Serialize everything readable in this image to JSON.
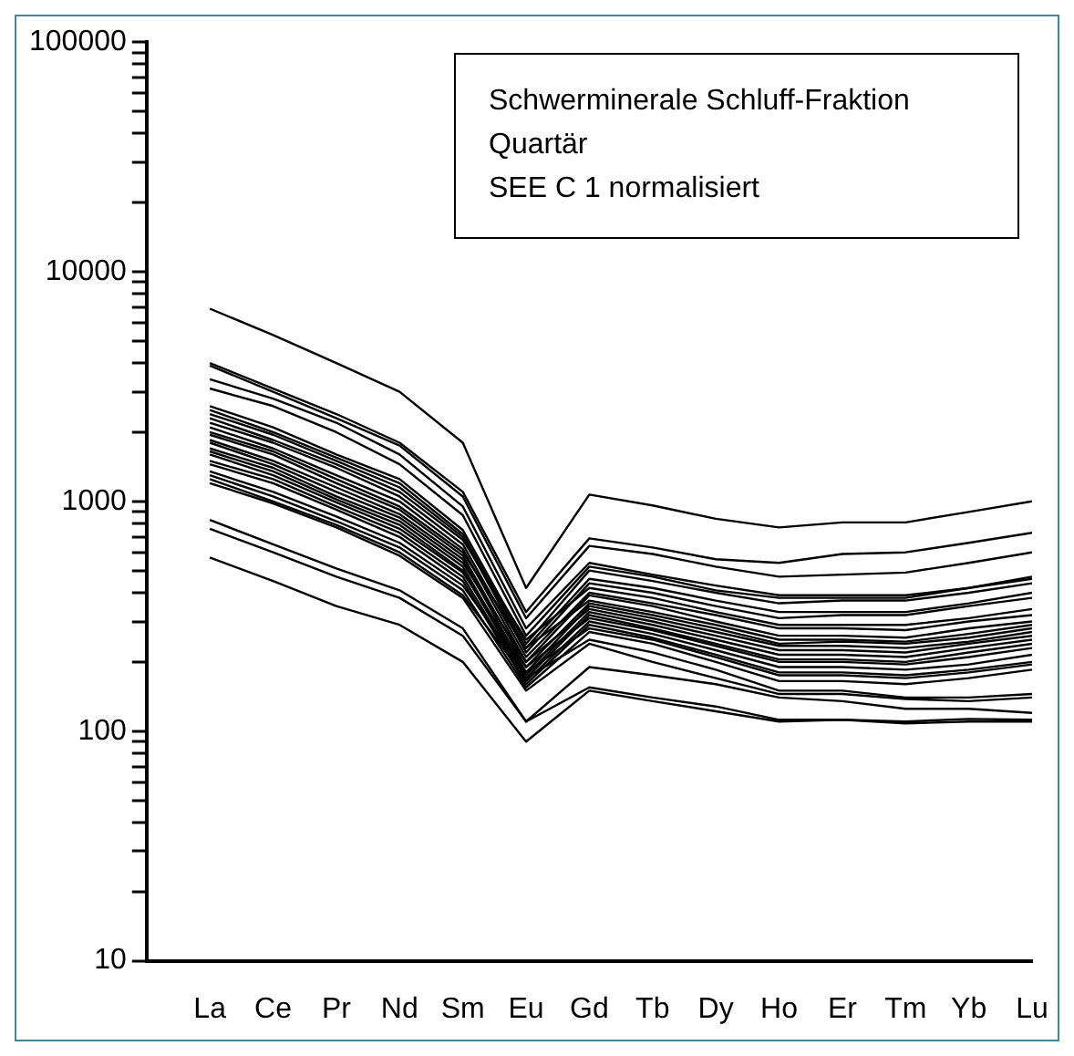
{
  "chart_data": {
    "type": "line",
    "annotations": [
      "Schwerminerale Schluff-Fraktion",
      "Quartär",
      "SEE C 1 normalisiert"
    ],
    "categories": [
      "La",
      "Ce",
      "Pr",
      "Nd",
      "Sm",
      "Eu",
      "Gd",
      "Tb",
      "Dy",
      "Ho",
      "Er",
      "Tm",
      "Yb",
      "Lu"
    ],
    "log": "y",
    "ylim": [
      10,
      100000
    ],
    "yticks": [
      10,
      {
        "value": 20,
        "label": null
      },
      {
        "value": 30,
        "label": null
      },
      {
        "value": 40,
        "label": null
      },
      {
        "value": 50,
        "label": null
      },
      {
        "value": 60,
        "label": null
      },
      {
        "value": 70,
        "label": null
      },
      {
        "value": 80,
        "label": null
      },
      {
        "value": 90,
        "label": null
      },
      100,
      {
        "value": 200,
        "label": null
      },
      {
        "value": 300,
        "label": null
      },
      {
        "value": 400,
        "label": null
      },
      {
        "value": 500,
        "label": null
      },
      {
        "value": 600,
        "label": null
      },
      {
        "value": 700,
        "label": null
      },
      {
        "value": 800,
        "label": null
      },
      {
        "value": 900,
        "label": null
      },
      1000,
      {
        "value": 2000,
        "label": null
      },
      {
        "value": 3000,
        "label": null
      },
      {
        "value": 4000,
        "label": null
      },
      {
        "value": 5000,
        "label": null
      },
      {
        "value": 6000,
        "label": null
      },
      {
        "value": 7000,
        "label": null
      },
      {
        "value": 8000,
        "label": null
      },
      {
        "value": 9000,
        "label": null
      },
      10000,
      {
        "value": 20000,
        "label": null
      },
      {
        "value": 30000,
        "label": null
      },
      {
        "value": 40000,
        "label": null
      },
      {
        "value": 50000,
        "label": null
      },
      {
        "value": 60000,
        "label": null
      },
      {
        "value": 70000,
        "label": null
      },
      {
        "value": 80000,
        "label": null
      },
      {
        "value": 90000,
        "label": null
      },
      100000
    ],
    "grid": false,
    "legend": false,
    "marker": "none",
    "line_style": "solid",
    "series": [
      {
        "color": "#000000",
        "values": [
          6900,
          5300,
          4000,
          3000,
          1800,
          420,
          1070,
          960,
          840,
          770,
          810,
          810,
          900,
          1000
        ]
      },
      {
        "color": "#000000",
        "values": [
          4000,
          3100,
          2400,
          1800,
          1100,
          330,
          690,
          630,
          560,
          540,
          590,
          600,
          660,
          730
        ]
      },
      {
        "color": "#000000",
        "values": [
          3900,
          3000,
          2300,
          1750,
          1050,
          310,
          640,
          590,
          520,
          470,
          480,
          490,
          540,
          600
        ]
      },
      {
        "color": "#000000",
        "values": [
          3400,
          2800,
          2200,
          1600,
          950,
          280,
          540,
          480,
          430,
          390,
          390,
          390,
          420,
          460
        ]
      },
      {
        "color": "#000000",
        "values": [
          3100,
          2600,
          2000,
          1450,
          870,
          260,
          520,
          470,
          410,
          380,
          380,
          380,
          420,
          470
        ]
      },
      {
        "color": "#000000",
        "values": [
          2600,
          2100,
          1600,
          1250,
          750,
          240,
          500,
          450,
          400,
          360,
          370,
          370,
          400,
          440
        ]
      },
      {
        "color": "#000000",
        "values": [
          2500,
          2000,
          1550,
          1200,
          720,
          230,
          460,
          420,
          370,
          330,
          330,
          330,
          360,
          400
        ]
      },
      {
        "color": "#000000",
        "values": [
          2400,
          1950,
          1500,
          1150,
          700,
          220,
          440,
          400,
          350,
          310,
          320,
          320,
          350,
          380
        ]
      },
      {
        "color": "#000000",
        "values": [
          2300,
          1850,
          1450,
          1100,
          680,
          250,
          420,
          380,
          330,
          290,
          290,
          290,
          310,
          340
        ]
      },
      {
        "color": "#000000",
        "values": [
          2200,
          1800,
          1400,
          1050,
          650,
          210,
          400,
          360,
          320,
          280,
          280,
          275,
          300,
          320
        ]
      },
      {
        "color": "#000000",
        "values": [
          2100,
          1700,
          1300,
          1000,
          620,
          200,
          390,
          350,
          300,
          260,
          260,
          255,
          280,
          300
        ]
      },
      {
        "color": "#000000",
        "values": [
          2000,
          1650,
          1250,
          950,
          600,
          230,
          370,
          330,
          290,
          250,
          250,
          245,
          265,
          290
        ]
      },
      {
        "color": "#000000",
        "values": [
          1950,
          1600,
          1200,
          920,
          580,
          190,
          360,
          320,
          280,
          240,
          245,
          240,
          255,
          280
        ]
      },
      {
        "color": "#000000",
        "values": [
          1850,
          1500,
          1150,
          880,
          560,
          180,
          350,
          310,
          270,
          235,
          235,
          230,
          245,
          270
        ]
      },
      {
        "color": "#000000",
        "values": [
          1800,
          1450,
          1100,
          850,
          540,
          200,
          340,
          300,
          260,
          225,
          225,
          220,
          240,
          260
        ]
      },
      {
        "color": "#000000",
        "values": [
          1700,
          1400,
          1050,
          820,
          520,
          175,
          330,
          290,
          250,
          215,
          215,
          210,
          230,
          250
        ]
      },
      {
        "color": "#000000",
        "values": [
          1650,
          1350,
          1020,
          790,
          500,
          170,
          320,
          280,
          240,
          205,
          205,
          200,
          220,
          240
        ]
      },
      {
        "color": "#000000",
        "values": [
          1600,
          1300,
          990,
          760,
          490,
          190,
          310,
          275,
          235,
          200,
          200,
          195,
          210,
          230
        ]
      },
      {
        "color": "#000000",
        "values": [
          1500,
          1250,
          950,
          730,
          470,
          165,
          300,
          265,
          225,
          190,
          190,
          185,
          195,
          215
        ]
      },
      {
        "color": "#000000",
        "values": [
          1450,
          1200,
          920,
          700,
          450,
          160,
          290,
          255,
          215,
          180,
          180,
          175,
          185,
          200
        ]
      },
      {
        "color": "#000000",
        "values": [
          1350,
          1100,
          860,
          660,
          430,
          180,
          280,
          250,
          210,
          175,
          175,
          170,
          180,
          195
        ]
      },
      {
        "color": "#000000",
        "values": [
          1300,
          1050,
          820,
          630,
          410,
          155,
          270,
          240,
          200,
          165,
          165,
          160,
          170,
          185
        ]
      },
      {
        "color": "#000000",
        "values": [
          1250,
          1000,
          790,
          600,
          390,
          170,
          250,
          220,
          185,
          150,
          150,
          140,
          140,
          145
        ]
      },
      {
        "color": "#000000",
        "values": [
          1200,
          980,
          770,
          580,
          380,
          150,
          240,
          200,
          170,
          145,
          145,
          138,
          135,
          140
        ]
      },
      {
        "color": "#000000",
        "values": [
          830,
          650,
          510,
          410,
          280,
          110,
          190,
          175,
          160,
          140,
          135,
          125,
          125,
          120
        ]
      },
      {
        "color": "#000000",
        "values": [
          760,
          600,
          470,
          380,
          260,
          110,
          155,
          140,
          128,
          112,
          112,
          110,
          113,
          112
        ]
      },
      {
        "color": "#000000",
        "values": [
          570,
          450,
          350,
          290,
          200,
          90,
          150,
          135,
          122,
          110,
          112,
          108,
          110,
          110
        ]
      }
    ]
  }
}
